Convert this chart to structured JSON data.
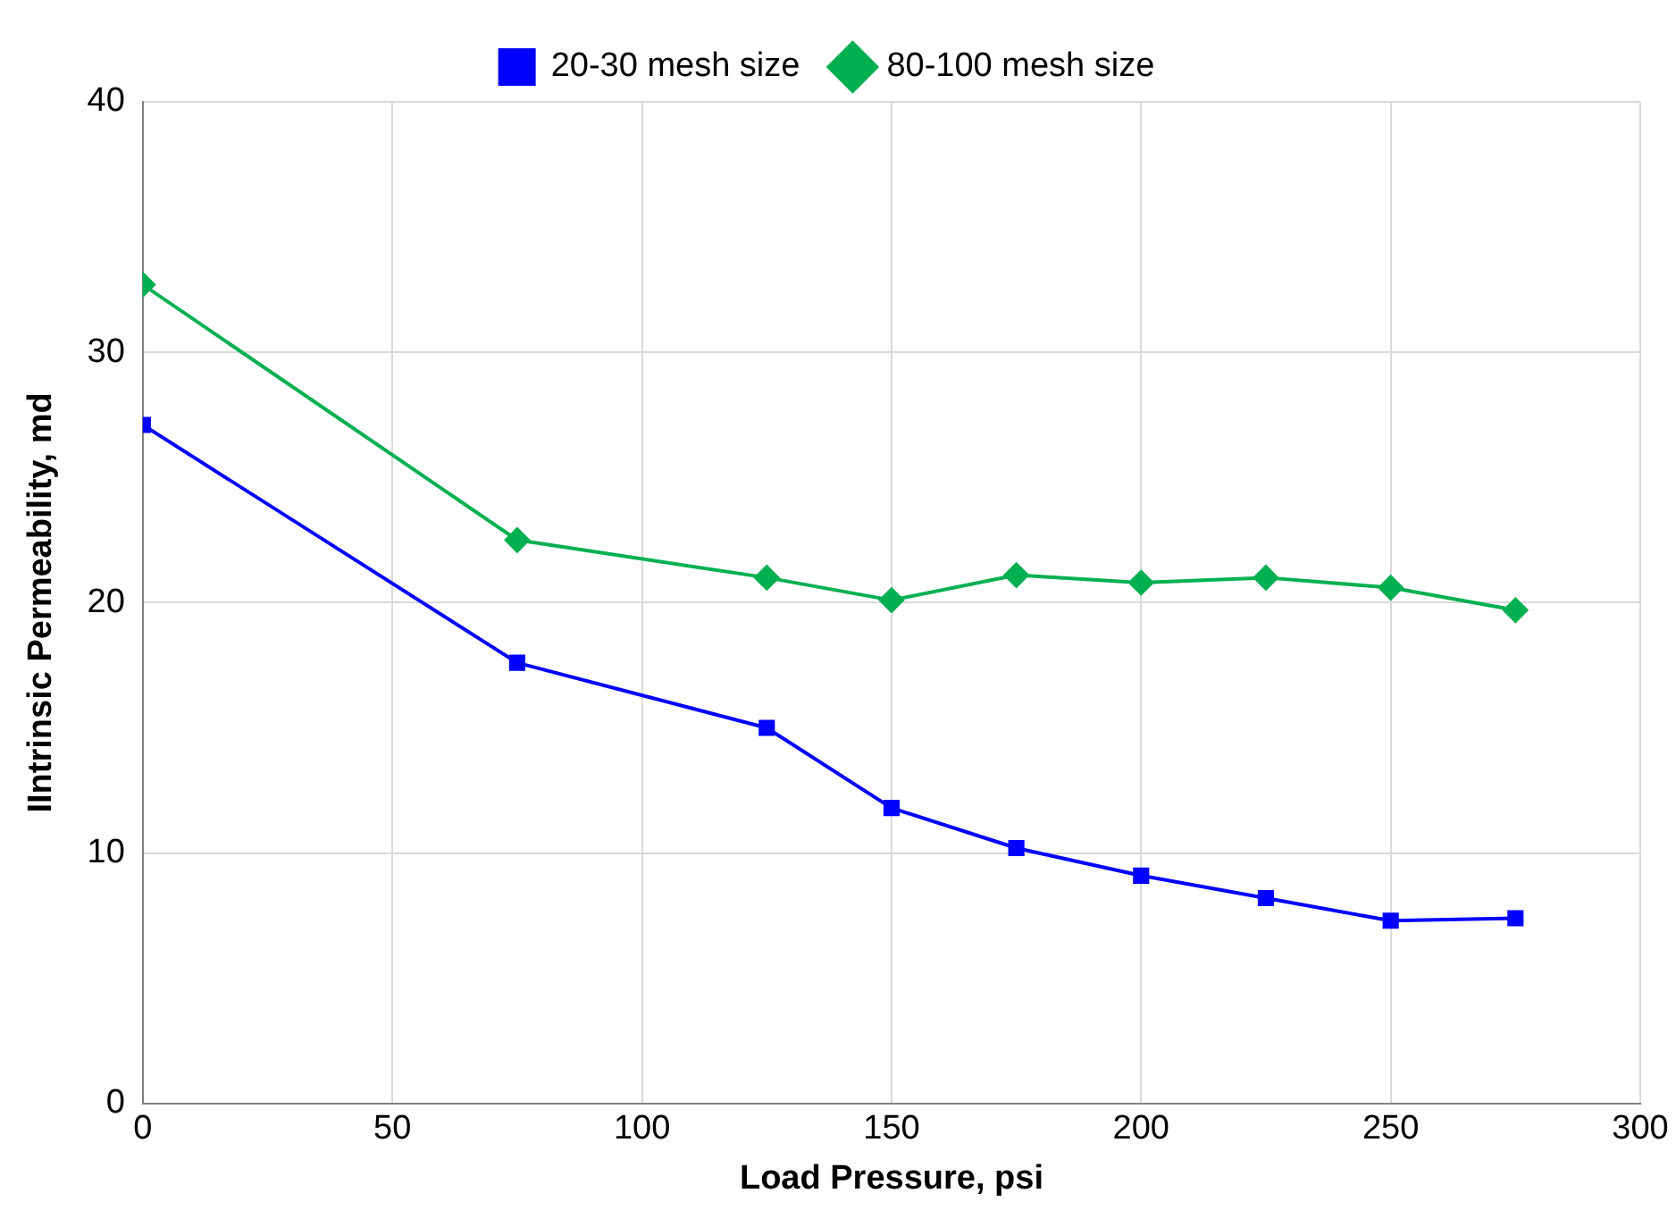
{
  "chart_data": {
    "type": "line",
    "xlabel": "Load Pressure, psi",
    "ylabel": "IIntrinsic Permeability, md",
    "x": [
      0,
      75,
      125,
      150,
      175,
      200,
      225,
      250,
      275
    ],
    "series": [
      {
        "name": "20-30 mesh size",
        "color": "#0000ff",
        "marker": "square",
        "values": [
          27.1,
          17.6,
          15.0,
          11.8,
          10.2,
          9.1,
          8.2,
          7.3,
          7.4
        ]
      },
      {
        "name": "80-100 mesh size",
        "color": "#00b050",
        "marker": "diamond",
        "values": [
          32.7,
          22.5,
          21.0,
          20.1,
          21.1,
          20.8,
          21.0,
          20.6,
          19.7
        ]
      }
    ],
    "xlim": [
      0,
      300
    ],
    "xticks": [
      0,
      50,
      100,
      150,
      200,
      250,
      300
    ],
    "ylim": [
      0,
      40
    ],
    "yticks": [
      0,
      10,
      20,
      30,
      40
    ],
    "grid": true,
    "legend": "top",
    "line_style": "solid"
  }
}
